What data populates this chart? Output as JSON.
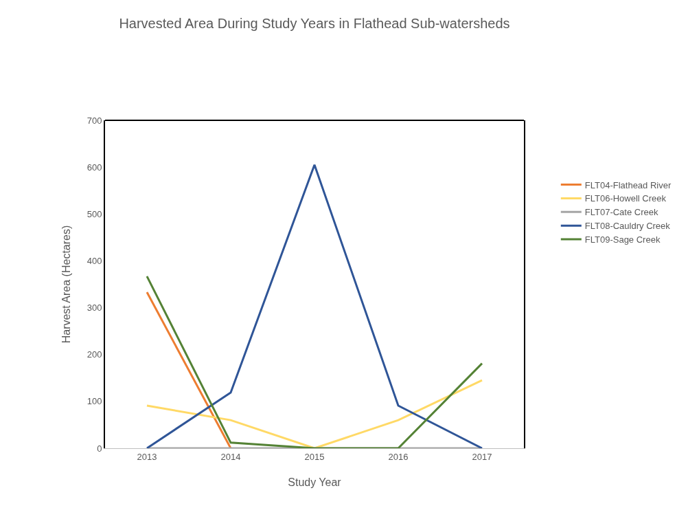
{
  "chart_data": {
    "type": "line",
    "title": "Harvested Area During Study Years in Flathead Sub-watersheds",
    "xlabel": "Study Year",
    "ylabel": "Harvest Area (Hectares)",
    "categories": [
      "2013",
      "2014",
      "2015",
      "2016",
      "2017"
    ],
    "series": [
      {
        "name": "FLT04-Flathead River",
        "color": "#ed7d31",
        "values": [
          333,
          0,
          null,
          null,
          null
        ]
      },
      {
        "name": "FLT06-Howell Creek",
        "color": "#ffd966",
        "values": [
          91,
          60,
          0,
          60,
          145
        ]
      },
      {
        "name": "FLT07-Cate Creek",
        "color": "#a5a5a5",
        "values": [
          0,
          0,
          0,
          0,
          0
        ]
      },
      {
        "name": "FLT08-Cauldry Creek",
        "color": "#2f5597",
        "values": [
          0,
          119,
          605,
          91,
          0
        ]
      },
      {
        "name": "FLT09-Sage Creek",
        "color": "#548235",
        "values": [
          367,
          12,
          0,
          0,
          181
        ]
      }
    ],
    "ylim": [
      0,
      700
    ],
    "yticks": [
      0,
      100,
      200,
      300,
      400,
      500,
      600,
      700
    ],
    "legend": "right",
    "marker": "none",
    "line_style": "solid"
  }
}
